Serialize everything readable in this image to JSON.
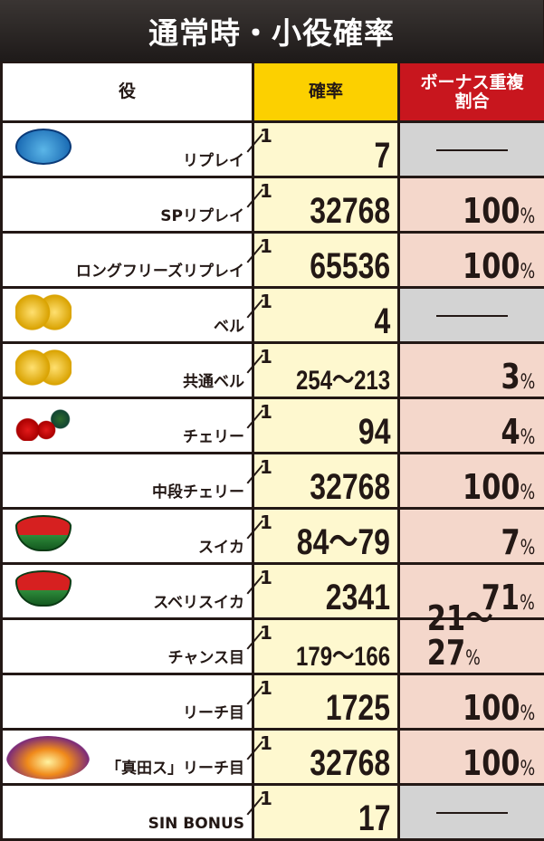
{
  "title": "通常時・小役確率",
  "headers": {
    "role": "役",
    "probability": "確率",
    "bonus_overlap": "ボーナス重複割合"
  },
  "fraction_prefix": "1",
  "percent_unit": "%",
  "colors": {
    "header_yellow": "#fcd000",
    "header_red": "#c8161e",
    "prob_bg": "#fef8cf",
    "bonus_bg": "#f4d7cb",
    "none_bg": "#d3d3d3"
  },
  "rows": [
    {
      "name": "リプレイ",
      "icon": "replay-icon",
      "prob": "7",
      "bonus": null
    },
    {
      "name": "SPリプレイ",
      "icon": null,
      "prob": "32768",
      "bonus": "100"
    },
    {
      "name": "ロングフリーズリプレイ",
      "icon": null,
      "prob": "65536",
      "bonus": "100"
    },
    {
      "name": "ベル",
      "icon": "bell-icon",
      "prob": "4",
      "bonus": null
    },
    {
      "name": "共通ベル",
      "icon": "bell-icon",
      "prob": "254～213",
      "bonus": "3"
    },
    {
      "name": "チェリー",
      "icon": "cherry-icon",
      "prob": "94",
      "bonus": "4"
    },
    {
      "name": "中段チェリー",
      "icon": null,
      "prob": "32768",
      "bonus": "100"
    },
    {
      "name": "スイカ",
      "icon": "watermelon-icon",
      "prob": "84～79",
      "bonus": "7"
    },
    {
      "name": "スベリスイカ",
      "icon": "watermelon-icon",
      "prob": "2341",
      "bonus": "71"
    },
    {
      "name": "チャンス目",
      "icon": null,
      "prob": "179～166",
      "bonus": "21～27"
    },
    {
      "name": "リーチ目",
      "icon": null,
      "prob": "1725",
      "bonus": "100"
    },
    {
      "name": "「真田ス」リーチ目",
      "icon": "special-icon",
      "prob": "32768",
      "bonus": "100"
    },
    {
      "name": "SIN BONUS",
      "icon": null,
      "prob": "17",
      "bonus": null
    }
  ]
}
